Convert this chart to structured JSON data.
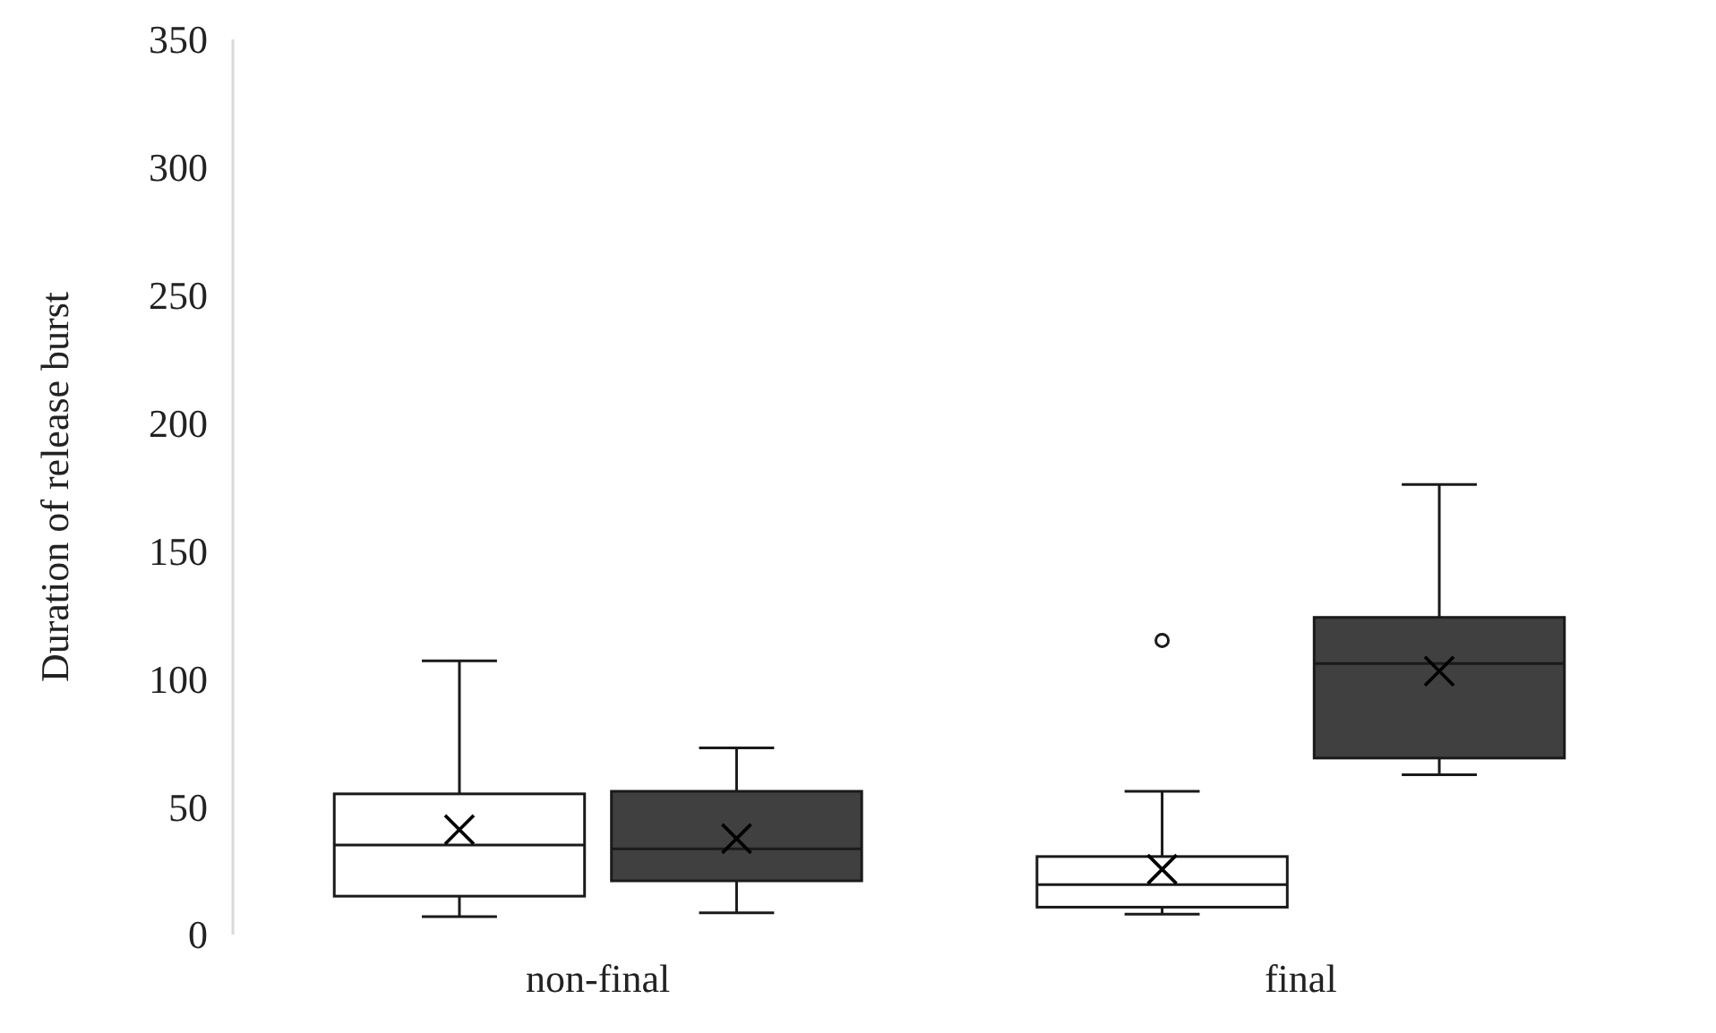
{
  "chart_data": {
    "type": "box",
    "ylabel": "Duration of release burst",
    "categories": [
      "non-final",
      "final"
    ],
    "ylim": [
      0,
      350
    ],
    "yticks": [
      0,
      50,
      100,
      150,
      200,
      250,
      300,
      350
    ],
    "grid": false,
    "series": [
      {
        "color": "#ffffff",
        "boxes": [
          {
            "low": 7,
            "q1": 15,
            "median": 35,
            "q3": 55,
            "high": 107,
            "mean": 41
          },
          {
            "low": 8,
            "q1": 10.7,
            "median": 19.5,
            "q3": 30.5,
            "high": 56,
            "mean": 25.5,
            "outliers": [
              115
            ]
          }
        ]
      },
      {
        "color": "#404040",
        "boxes": [
          {
            "low": 8.5,
            "q1": 21,
            "median": 33.5,
            "q3": 56,
            "high": 73,
            "mean": 37.5
          },
          {
            "low": 62.5,
            "q1": 69,
            "median": 106,
            "q3": 124,
            "high": 176,
            "mean": 103
          }
        ]
      }
    ]
  }
}
